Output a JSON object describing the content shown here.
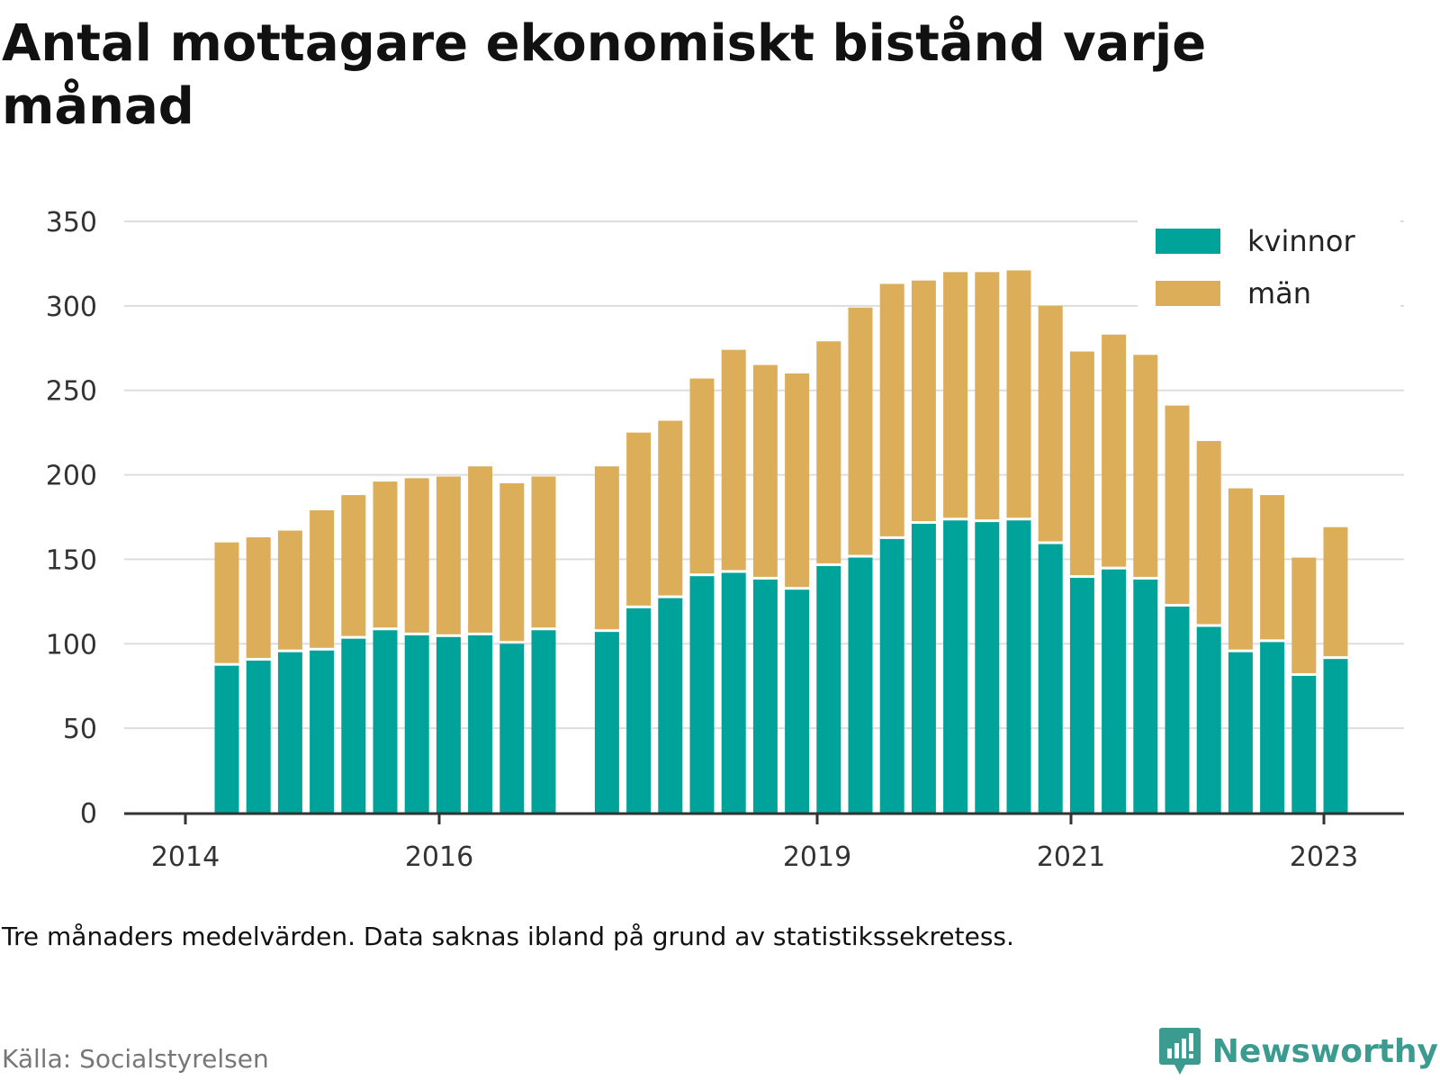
{
  "title": "Antal mottagare ekonomiskt bistånd varje månad",
  "note": "Tre månaders medelvärden. Data saknas ibland på grund av statistikssekretess.",
  "source": "Källa: Socialstyrelsen",
  "brand": {
    "name": "Newsworthy",
    "icon": "newsworthy-logo-icon",
    "color": "#3b9b8f"
  },
  "colors": {
    "kvinnor": "#00a39a",
    "man": "#dcae5a",
    "grid": "#dddddd",
    "axis": "#333333"
  },
  "chart_data": {
    "type": "bar",
    "stacked": true,
    "title": "Antal mottagare ekonomiskt bistånd varje månad",
    "xlabel": "",
    "ylabel": "",
    "ylim": [
      0,
      350
    ],
    "yticks": [
      0,
      50,
      100,
      150,
      200,
      250,
      300,
      350
    ],
    "xticks": [
      "2014",
      "2016",
      "2019",
      "2021",
      "2023"
    ],
    "grid": true,
    "legend_position": "top-right",
    "series": [
      {
        "name": "kvinnor",
        "color": "#00a39a",
        "values": [
          87,
          90,
          95,
          96,
          103,
          108,
          105,
          104,
          105,
          100,
          108,
          null,
          107,
          121,
          127,
          140,
          142,
          138,
          132,
          146,
          151,
          162,
          171,
          173,
          172,
          173,
          159,
          139,
          144,
          138,
          122,
          110,
          95,
          101,
          81,
          91
        ]
      },
      {
        "name": "män",
        "color": "#dcae5a",
        "values": [
          73,
          73,
          72,
          83,
          85,
          88,
          93,
          95,
          100,
          95,
          91,
          null,
          98,
          104,
          105,
          117,
          132,
          127,
          128,
          133,
          148,
          151,
          144,
          147,
          148,
          148,
          141,
          134,
          139,
          133,
          119,
          110,
          97,
          87,
          70,
          78
        ]
      }
    ]
  }
}
